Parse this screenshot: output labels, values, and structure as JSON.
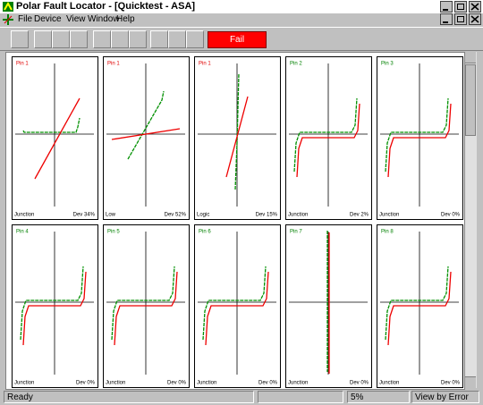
{
  "window": {
    "title": "Polar Fault Locator - [Quicktest - ASA]"
  },
  "menu": [
    "File",
    "Device",
    "View",
    "Window",
    "Help"
  ],
  "toolbar": {
    "status": "Fail"
  },
  "panels": [
    {
      "pin": "Pin 1",
      "pin_color": "#e00000",
      "mode": "Junction",
      "deviation": "Dev 34%"
    },
    {
      "pin": "Pin 1",
      "pin_color": "#e00000",
      "mode": "Low",
      "deviation": "Dev 52%"
    },
    {
      "pin": "Pin 1",
      "pin_color": "#e00000",
      "mode": "Logic",
      "deviation": "Dev 15%"
    },
    {
      "pin": "Pin 2",
      "pin_color": "#008000",
      "mode": "Junction",
      "deviation": "Dev 2%"
    },
    {
      "pin": "Pin 3",
      "pin_color": "#008000",
      "mode": "Junction",
      "deviation": "Dev 0%"
    },
    {
      "pin": "Pin 4",
      "pin_color": "#008000",
      "mode": "Junction",
      "deviation": "Dev 0%"
    },
    {
      "pin": "Pin 5",
      "pin_color": "#008000",
      "mode": "Junction",
      "deviation": "Dev 0%"
    },
    {
      "pin": "Pin 6",
      "pin_color": "#008000",
      "mode": "Junction",
      "deviation": "Dev 0%"
    },
    {
      "pin": "Pin 7",
      "pin_color": "#008000",
      "mode": "Junction",
      "deviation": "Dev 0%"
    },
    {
      "pin": "Pin 8",
      "pin_color": "#008000",
      "mode": "Junction",
      "deviation": "Dev 0%"
    }
  ],
  "statusbar": {
    "message": "Ready",
    "progress": "5%",
    "view": "View by Error"
  }
}
